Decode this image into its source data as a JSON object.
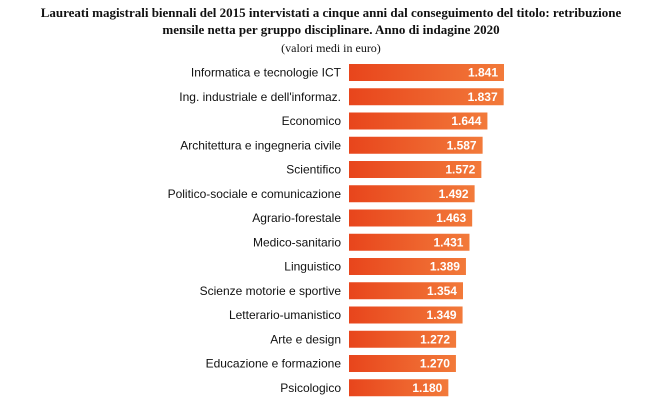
{
  "chart_data": {
    "type": "bar",
    "orientation": "horizontal",
    "title_line1": "Laureati magistrali biennali del 2015 intervistati a cinque anni dal conseguimento del titolo: retribuzione",
    "title_line2": "mensile netta per gruppo disciplinare. Anno di indagine 2020",
    "subtitle": "(valori medi in euro)",
    "categories": [
      "Informatica e tecnologie ICT",
      "Ing. industriale e dell'informaz.",
      "Economico",
      "Architettura e ingegneria civile",
      "Scientifico",
      "Politico-sociale e comunicazione",
      "Agrario-forestale",
      "Medico-sanitario",
      "Linguistico",
      "Scienze motorie e sportive",
      "Letterario-umanistico",
      "Arte e design",
      "Educazione e formazione",
      "Psicologico"
    ],
    "values": [
      1841,
      1837,
      1644,
      1587,
      1572,
      1492,
      1463,
      1431,
      1389,
      1354,
      1349,
      1272,
      1270,
      1180
    ],
    "value_labels": [
      "1.841",
      "1.837",
      "1.644",
      "1.587",
      "1.572",
      "1.492",
      "1.463",
      "1.431",
      "1.389",
      "1.354",
      "1.349",
      "1.272",
      "1.270",
      "1.180"
    ],
    "bar_color": "#e8451c",
    "bar_color_light": "#f27a3a",
    "label_color": "#ffffff",
    "grid": false,
    "legend": false
  }
}
